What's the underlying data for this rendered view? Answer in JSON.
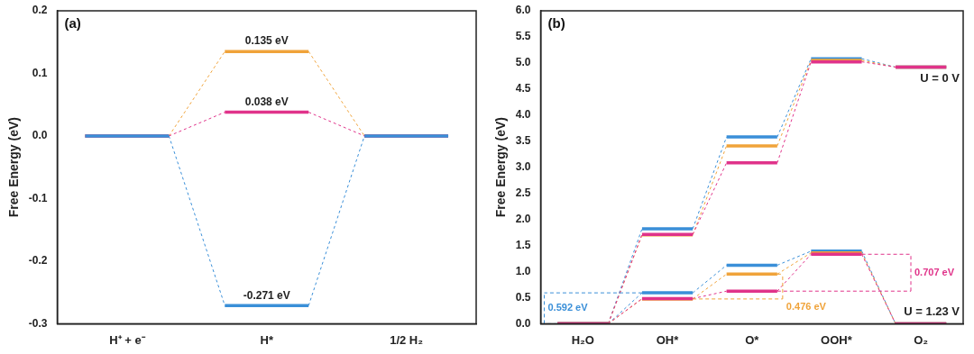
{
  "chart_data": [
    {
      "type": "step",
      "panel": "(a)",
      "y_label": "Free Energy (eV)",
      "categories": [
        "H⁺ + e⁻",
        "H*",
        "1/2 H₂"
      ],
      "ylim": [
        -0.3,
        0.2
      ],
      "yticks": [
        -0.3,
        -0.2,
        -0.1,
        {
          "value": 0,
          "label": "0.0"
        },
        0.1,
        0.2
      ],
      "grid": false,
      "series": [
        {
          "color": "#f0a33a",
          "values": [
            0,
            0.135,
            0
          ],
          "value_labels": [
            null,
            "0.135 eV",
            null
          ]
        },
        {
          "color": "#e0338a",
          "values": [
            0,
            0.038,
            0
          ],
          "value_labels": [
            null,
            "0.038 eV",
            null
          ]
        },
        {
          "color": "#3a8fd8",
          "values": [
            0,
            -0.271,
            0
          ],
          "value_labels": [
            null,
            "-0.271 eV",
            null
          ]
        }
      ]
    },
    {
      "type": "step",
      "panel": "(b)",
      "y_label": "Free Energy (eV)",
      "categories": [
        "H₂O",
        "OH*",
        "O*",
        "OOH*",
        "O₂"
      ],
      "ylim": [
        0,
        6
      ],
      "yticks": [
        {
          "value": 0,
          "label": "0.0"
        },
        0.5,
        {
          "value": 1,
          "label": "1.0"
        },
        1.5,
        {
          "value": 2,
          "label": "2.0"
        },
        2.5,
        {
          "value": 3,
          "label": "3.0"
        },
        3.5,
        {
          "value": 4,
          "label": "4.0"
        },
        4.5,
        {
          "value": 5,
          "label": "5.0"
        },
        5.5,
        {
          "value": 6,
          "label": "6.0"
        }
      ],
      "grid": false,
      "groups": [
        {
          "label": "U = 0 V",
          "series": [
            {
              "color": "#3a8fd8",
              "values": [
                0,
                1.822,
                3.582,
                5.082,
                4.92
              ]
            },
            {
              "color": "#f0a33a",
              "values": [
                0,
                1.705,
                3.411,
                5.05,
                4.92
              ]
            },
            {
              "color": "#e0338a",
              "values": [
                0,
                1.712,
                3.085,
                5.022,
                4.92
              ]
            }
          ]
        },
        {
          "label": "U = 1.23 V",
          "series": [
            {
              "color": "#3a8fd8",
              "values": [
                0,
                0.592,
                1.122,
                1.392,
                0
              ]
            },
            {
              "color": "#f0a33a",
              "values": [
                0,
                0.475,
                0.951,
                1.36,
                0
              ]
            },
            {
              "color": "#e0338a",
              "values": [
                0,
                0.482,
                0.625,
                1.332,
                0
              ]
            }
          ]
        }
      ],
      "annotations": [
        {
          "text": "0.592 eV",
          "color": "#3a8fd8",
          "group": 1,
          "series": 0,
          "from": "H₂O",
          "to": "OH*"
        },
        {
          "text": "0.476 eV",
          "color": "#f0a33a",
          "group": 1,
          "series": 1,
          "from": "OH*",
          "to": "O*"
        },
        {
          "text": "0.707 eV",
          "color": "#e0338a",
          "group": 1,
          "series": 2,
          "from": "O*",
          "to": "OOH*"
        }
      ]
    }
  ]
}
